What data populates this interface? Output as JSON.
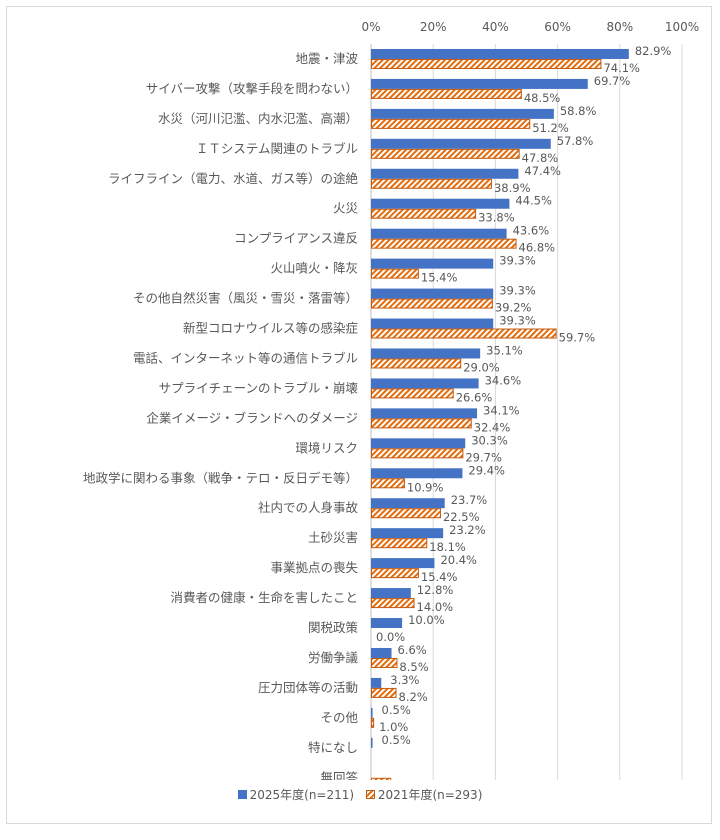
{
  "chart_data": {
    "type": "bar",
    "orientation": "horizontal",
    "categories": [
      "地震・津波",
      "サイバー攻撃（攻撃手段を問わない）",
      "水災（河川氾濫、内水氾濫、高潮）",
      "ＩＴシステム関連のトラブル",
      "ライフライン（電力、水道、ガス等）の途絶",
      "火災",
      "コンプライアンス違反",
      "火山噴火・降灰",
      "その他自然災害（風災・雪災・落雷等）",
      "新型コロナウイルス等の感染症",
      "電話、インターネット等の通信トラブル",
      "サプライチェーンのトラブル・崩壊",
      "企業イメージ・ブランドへのダメージ",
      "環境リスク",
      "地政学に関わる事象（戦争・テロ・反日デモ等）",
      "社内での人身事故",
      "土砂災害",
      "事業拠点の喪失",
      "消費者の健康・生命を害したこと",
      "関税政策",
      "労働争議",
      "圧力団体等の活動",
      "その他",
      "特になし",
      "無回答"
    ],
    "series": [
      {
        "name": "2025年度(n=211)",
        "color": "#4472C4",
        "values": [
          82.9,
          69.7,
          58.8,
          57.8,
          47.4,
          44.5,
          43.6,
          39.3,
          39.3,
          39.3,
          35.1,
          34.6,
          34.1,
          30.3,
          29.4,
          23.7,
          23.2,
          20.4,
          12.8,
          10.0,
          6.6,
          3.3,
          0.5,
          0.5,
          null
        ]
      },
      {
        "name": "2021年度(n=293)",
        "color": "#E46C0A",
        "pattern": "diagonal-hatch",
        "values": [
          74.1,
          48.5,
          51.2,
          47.8,
          38.9,
          33.8,
          46.8,
          15.4,
          39.2,
          59.7,
          29.0,
          26.6,
          32.4,
          29.7,
          10.9,
          22.5,
          18.1,
          15.4,
          14.0,
          0.0,
          8.5,
          8.2,
          1.0,
          null,
          6.5
        ]
      }
    ],
    "xlim": [
      0,
      100
    ],
    "xticks": [
      "0%",
      "20%",
      "40%",
      "60%",
      "80%",
      "100%"
    ],
    "xaxis_position": "top",
    "grid": true,
    "legend_position": "bottom"
  }
}
